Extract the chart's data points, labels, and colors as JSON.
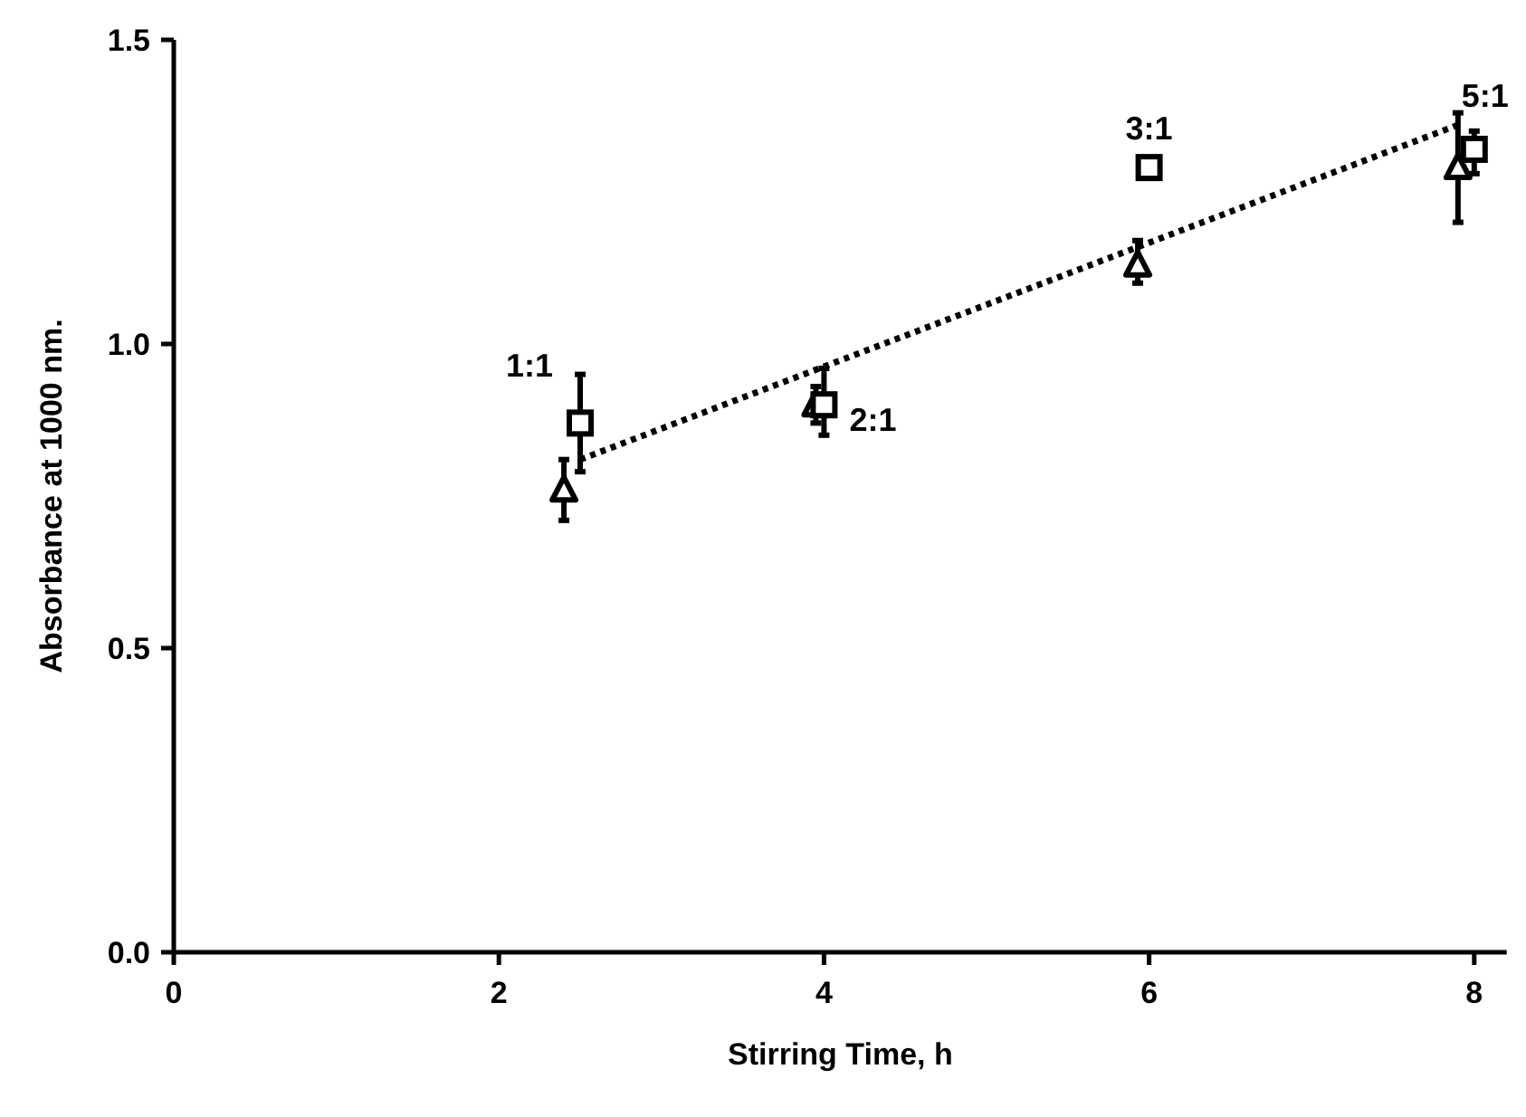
{
  "chart_data": {
    "type": "scatter",
    "xlabel": "Stirring Time, h",
    "ylabel": "Absorbance at 1000 nm.",
    "xlim": [
      0,
      8.2
    ],
    "ylim": [
      0,
      1.5
    ],
    "xticks": [
      0,
      2,
      4,
      6,
      8
    ],
    "yticks": [
      {
        "value": 0,
        "label": "0.0"
      },
      0.5,
      {
        "value": 1,
        "label": "1.0"
      },
      1.5
    ],
    "grid": false,
    "series": [
      {
        "marker": "triangle",
        "color": "#000000",
        "x": [
          2.4,
          3.95,
          5.93,
          7.9
        ],
        "values": [
          0.76,
          0.9,
          1.13,
          1.29
        ],
        "errors": [
          [
            0.71,
            0.81
          ],
          [
            0.87,
            0.93
          ],
          [
            1.1,
            1.17
          ],
          [
            1.2,
            1.38
          ]
        ]
      },
      {
        "marker": "square",
        "color": "#000000",
        "x": [
          2.5,
          4,
          6,
          8
        ],
        "values": [
          0.87,
          0.9,
          1.29,
          1.32
        ],
        "errors": [
          [
            0.79,
            0.95
          ],
          [
            0.85,
            0.96
          ],
          null,
          [
            1.28,
            1.35
          ]
        ]
      },
      {
        "type": "line",
        "marker": "none",
        "line_style": "dotted",
        "color": "#000000",
        "x": [
          2.5,
          7.9
        ],
        "values": [
          0.81,
          1.36
        ]
      }
    ],
    "annotations": [
      {
        "text": "1:1",
        "x": 2.5,
        "y": 0.87
      },
      {
        "text": "2:1",
        "x": 4,
        "y": 0.9
      },
      {
        "text": "3:1",
        "x": 6,
        "y": 1.29
      },
      {
        "text": "5:1",
        "x": 8,
        "y": 1.32
      }
    ]
  }
}
